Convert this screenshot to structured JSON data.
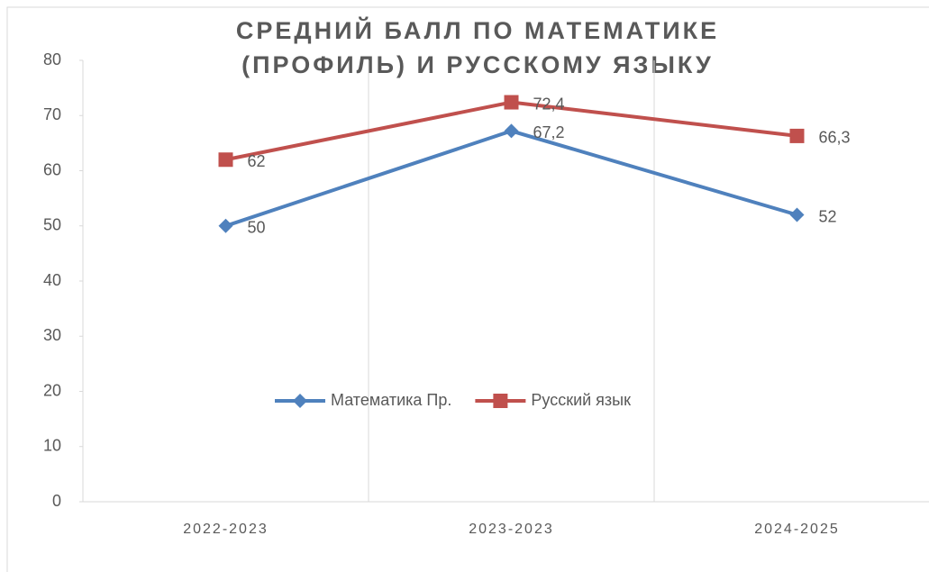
{
  "chart_data": {
    "type": "line",
    "title": [
      "СРЕДНИЙ БАЛЛ ПО МАТЕМАТИКЕ",
      "(ПРОФИЛЬ) И РУССКОМУ ЯЗЫКУ"
    ],
    "categories": [
      "2022-2023",
      "2023-2023",
      "2024-2025"
    ],
    "series": [
      {
        "name": "Математика Пр.",
        "color": "#4f81bd",
        "marker": "diamond",
        "values": [
          50,
          67.2,
          52
        ],
        "value_labels": [
          "50",
          "67,2",
          "52"
        ]
      },
      {
        "name": "Русский язык",
        "color": "#c0504d",
        "marker": "square",
        "values": [
          62,
          72.4,
          66.3
        ],
        "value_labels": [
          "62",
          "72,4",
          "66,3"
        ]
      }
    ],
    "ylim": [
      0,
      80
    ],
    "yticks": [
      0,
      10,
      20,
      30,
      40,
      50,
      60,
      70,
      80
    ],
    "grid": "x",
    "legend": "center"
  }
}
